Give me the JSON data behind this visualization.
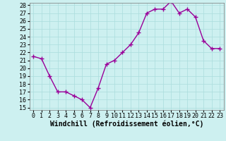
{
  "x": [
    0,
    1,
    2,
    3,
    4,
    5,
    6,
    7,
    8,
    9,
    10,
    11,
    12,
    13,
    14,
    15,
    16,
    17,
    18,
    19,
    20,
    21,
    22,
    23
  ],
  "y": [
    21.5,
    21.2,
    19.0,
    17.0,
    17.0,
    16.5,
    16.0,
    15.0,
    17.5,
    20.5,
    21.0,
    22.0,
    23.0,
    24.5,
    27.0,
    27.5,
    27.5,
    28.5,
    27.0,
    27.5,
    26.5,
    23.5,
    22.5,
    22.5
  ],
  "line_color": "#990099",
  "marker": "+",
  "bg_color": "#cdf0f0",
  "grid_color": "#aadddd",
  "xlabel": "Windchill (Refroidissement éolien,°C)",
  "xlabel_fontsize": 7,
  "tick_fontsize": 6,
  "ylim_min": 15,
  "ylim_max": 28,
  "yticks": [
    15,
    16,
    17,
    18,
    19,
    20,
    21,
    22,
    23,
    24,
    25,
    26,
    27,
    28
  ],
  "xticks": [
    0,
    1,
    2,
    3,
    4,
    5,
    6,
    7,
    8,
    9,
    10,
    11,
    12,
    13,
    14,
    15,
    16,
    17,
    18,
    19,
    20,
    21,
    22,
    23
  ]
}
